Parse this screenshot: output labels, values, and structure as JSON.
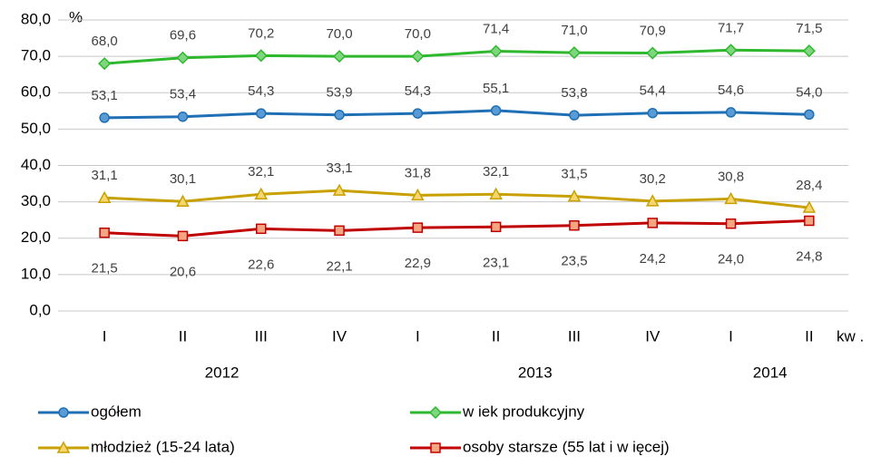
{
  "chart_data": {
    "type": "line",
    "y_label": "%",
    "x_label": "kw .",
    "categories": [
      "I",
      "II",
      "III",
      "IV",
      "I",
      "II",
      "III",
      "IV",
      "I",
      "II"
    ],
    "year_labels": [
      "2012",
      "2013",
      "2014"
    ],
    "ylim": [
      0,
      80
    ],
    "yticks": [
      {
        "value": 0,
        "label": "0,0"
      },
      {
        "value": 10,
        "label": "10,0"
      },
      {
        "value": 20,
        "label": "20,0"
      },
      {
        "value": 30,
        "label": "30,0"
      },
      {
        "value": 40,
        "label": "40,0"
      },
      {
        "value": 50,
        "label": "50,0"
      },
      {
        "value": 60,
        "label": "60,0"
      },
      {
        "value": 70,
        "label": "70,0"
      },
      {
        "value": 80,
        "label": "80,0"
      }
    ],
    "grid": true,
    "series": [
      {
        "name": "ogółem",
        "color": "#1f6fb5",
        "marker": "circle",
        "marker_fill": "#5b9bd5",
        "label_position": "above",
        "values": [
          53.1,
          53.4,
          54.3,
          53.9,
          54.3,
          55.1,
          53.8,
          54.4,
          54.6,
          54.0
        ],
        "value_labels": [
          "53,1",
          "53,4",
          "54,3",
          "53,9",
          "54,3",
          "55,1",
          "53,8",
          "54,4",
          "54,6",
          "54,0"
        ]
      },
      {
        "name": "w iek produkcyjny",
        "color": "#2db82d",
        "marker": "diamond",
        "marker_fill": "#7fd67f",
        "label_position": "above",
        "values": [
          68.0,
          69.6,
          70.2,
          70.0,
          70.0,
          71.4,
          71.0,
          70.9,
          71.7,
          71.5
        ],
        "value_labels": [
          "68,0",
          "69,6",
          "70,2",
          "70,0",
          "70,0",
          "71,4",
          "71,0",
          "70,9",
          "71,7",
          "71,5"
        ]
      },
      {
        "name": "młodzież  (15-24 lata)",
        "color": "#c8a000",
        "marker": "triangle",
        "marker_fill": "#f5d76e",
        "label_position": "above",
        "values": [
          31.1,
          30.1,
          32.1,
          33.1,
          31.8,
          32.1,
          31.5,
          30.2,
          30.8,
          28.4
        ],
        "value_labels": [
          "31,1",
          "30,1",
          "32,1",
          "33,1",
          "31,8",
          "32,1",
          "31,5",
          "30,2",
          "30,8",
          "28,4"
        ]
      },
      {
        "name": "osoby starsze (55 lat i w ięcej)",
        "color": "#c00000",
        "marker": "square",
        "marker_fill": "#f4a582",
        "label_position": "below",
        "values": [
          21.5,
          20.6,
          22.6,
          22.1,
          22.9,
          23.1,
          23.5,
          24.2,
          24.0,
          24.8
        ],
        "value_labels": [
          "21,5",
          "20,6",
          "22,6",
          "22,1",
          "22,9",
          "23,1",
          "23,5",
          "24,2",
          "24,0",
          "24,8"
        ]
      }
    ]
  }
}
